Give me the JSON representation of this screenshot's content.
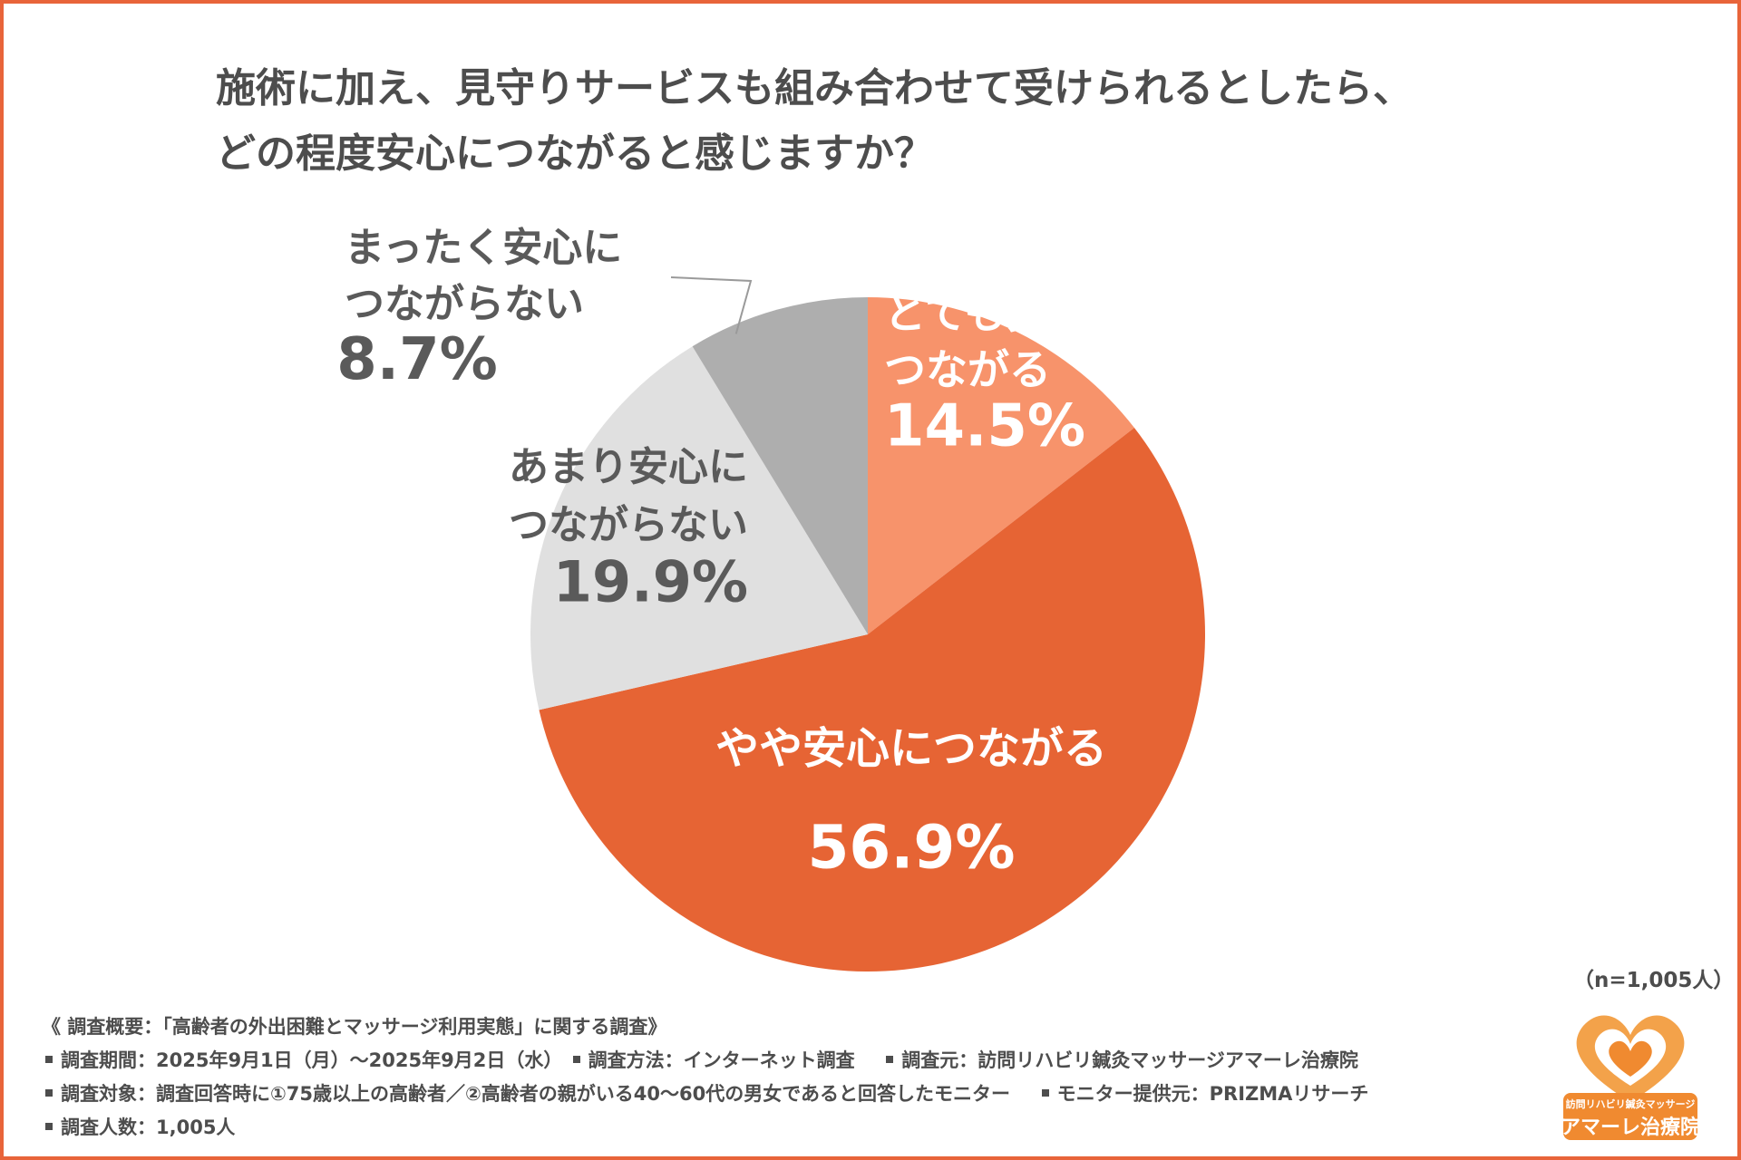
{
  "title": {
    "line1": "施術に加え、見守りサービスも組み合わせて受けられるとしたら、",
    "line2": "どの程度安心につながると感じますか？"
  },
  "chart_data": {
    "type": "pie",
    "title": "施術に加え、見守りサービスも組み合わせて受けられるとしたら、どの程度安心につながると感じますか？",
    "slices": [
      {
        "label_lines": [
          "とても安心に",
          "つながる"
        ],
        "value": 14.5,
        "value_label": "14.5%",
        "color": "#f7936b",
        "text_color": "#ffffff"
      },
      {
        "label_lines": [
          "やや安心につながる"
        ],
        "value": 56.9,
        "value_label": "56.9%",
        "color": "#e66434",
        "text_color": "#ffffff"
      },
      {
        "label_lines": [
          "あまり安心に",
          "つながらない"
        ],
        "value": 19.9,
        "value_label": "19.9%",
        "color": "#e0e0e0",
        "text_color": "#5a5a5a"
      },
      {
        "label_lines": [
          "まったく安心に",
          "つながらない"
        ],
        "value": 8.7,
        "value_label": "8.7%",
        "color": "#aeaeae",
        "text_color": "#5a5a5a"
      }
    ],
    "start_angle_deg": 0,
    "direction": "clockwise"
  },
  "sample_size": "（n=1,005人）",
  "footer": {
    "overview": "《 調査概要：「高齢者の外出困難とマッサージ利用実態」に関する調査》",
    "period": "調査期間：2025年9月1日（月）～2025年9月2日（水）",
    "method": "調査方法：インターネット調査",
    "source": "調査元：訪問リハビリ鍼灸マッサージアマーレ治療院",
    "target": "調査対象：調査回答時に①75歳以上の高齢者／②高齢者の親がいる40～60代の男女であると回答したモニター",
    "provider": "モニター提供元：PRIZMAリサーチ",
    "count": "調査人数：1,005人"
  },
  "logo": {
    "subtitle": "訪問リハビリ鍼灸マッサージ",
    "name": "アマーレ治療院",
    "color": "#f08a30"
  }
}
